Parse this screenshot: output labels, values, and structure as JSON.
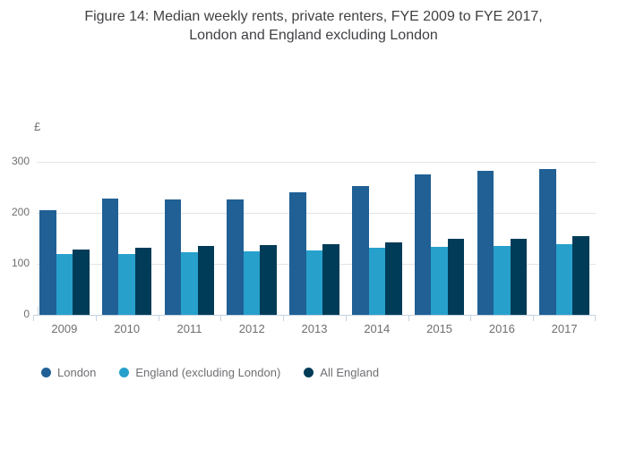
{
  "title": {
    "line1": "Figure 14: Median weekly rents, private renters, FYE 2009 to FYE 2017,",
    "line2": "London and England excluding London"
  },
  "y_axis": {
    "unit_label": "£"
  },
  "chart_data": {
    "type": "bar",
    "title": "Figure 14: Median weekly rents, private renters, FYE 2009 to FYE 2017, London and England excluding London",
    "ylabel": "£",
    "ylim": [
      0,
      300
    ],
    "yticks": [
      0,
      100,
      200,
      300
    ],
    "grid": true,
    "legend_position": "bottom",
    "categories": [
      "2009",
      "2010",
      "2011",
      "2012",
      "2013",
      "2014",
      "2015",
      "2016",
      "2017"
    ],
    "series": [
      {
        "name": "London",
        "color": "#206095",
        "values": [
          206,
          229,
          227,
          226,
          241,
          253,
          276,
          283,
          286
        ]
      },
      {
        "name": "England (excluding London)",
        "color": "#27a0cc",
        "values": [
          119,
          119,
          123,
          125,
          127,
          131,
          133,
          136,
          138
        ]
      },
      {
        "name": "All England",
        "color": "#003c57",
        "values": [
          129,
          132,
          136,
          137,
          138,
          143,
          150,
          150,
          155
        ]
      }
    ]
  },
  "colors": {
    "london": "#206095",
    "england_excluding_london": "#27a0cc",
    "all_england": "#003c57",
    "gridline": "#e3e4e6",
    "axis_line": "#c6d3e0",
    "text_muted": "#6e6f72",
    "title_text": "#404144"
  }
}
